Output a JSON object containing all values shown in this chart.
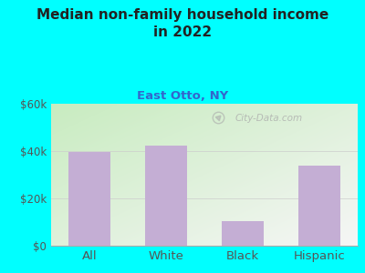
{
  "title": "Median non-family household income\nin 2022",
  "subtitle": "East Otto, NY",
  "categories": [
    "All",
    "White",
    "Black",
    "Hispanic"
  ],
  "values": [
    39500,
    42500,
    10500,
    34000
  ],
  "bar_color": "#c4aed4",
  "bg_outer": "#00FFFF",
  "ylabel_color": "#555555",
  "title_color": "#222222",
  "subtitle_color": "#3366cc",
  "xlabel_color": "#555555",
  "ylim": [
    0,
    60000
  ],
  "yticks": [
    0,
    20000,
    40000,
    60000
  ],
  "ytick_labels": [
    "$0",
    "$20k",
    "$40k",
    "$60k"
  ],
  "watermark": "City-Data.com",
  "gradient_top": "#c8ecc8",
  "gradient_bottom": "#f0f8f0",
  "gradient_right": "#f8f8ff"
}
